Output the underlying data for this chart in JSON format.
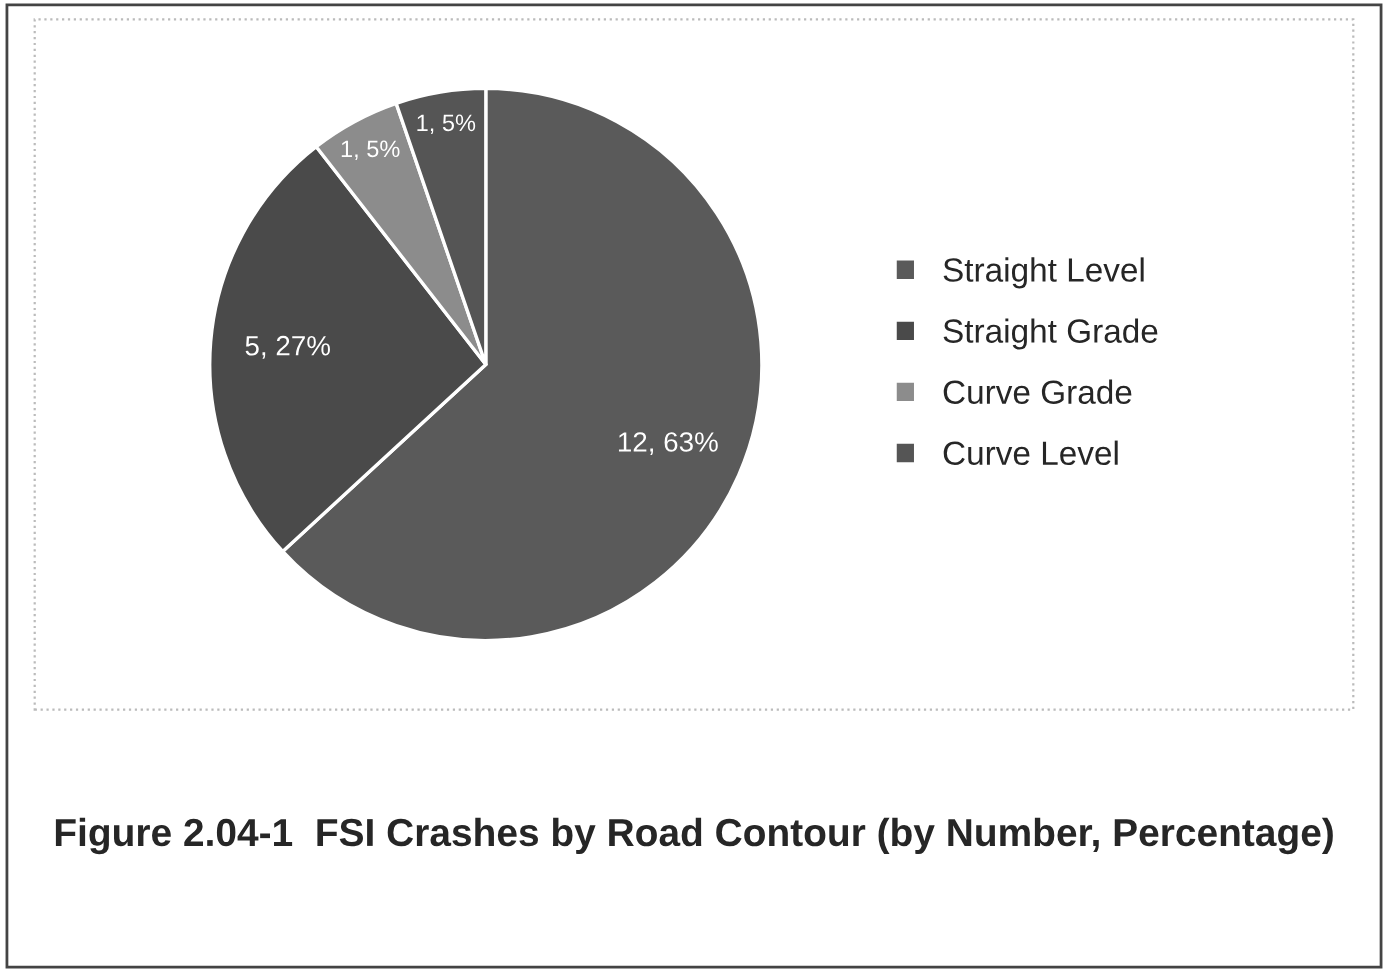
{
  "chart_data": {
    "type": "pie",
    "title": "Figure 2.04-1  FSI Crashes by Road Contour (by Number, Percentage)",
    "categories": [
      "Straight Level",
      "Straight Grade",
      "Curve Grade",
      "Curve Level"
    ],
    "values": [
      12,
      5,
      1,
      1
    ],
    "value_labels": [
      "12, 63%",
      "5, 27%",
      "1, 5%",
      "1, 5%"
    ],
    "colors": [
      "#5a5a5a",
      "#4a4a4a",
      "#8c8c8c",
      "#555555"
    ],
    "legend": "right"
  }
}
